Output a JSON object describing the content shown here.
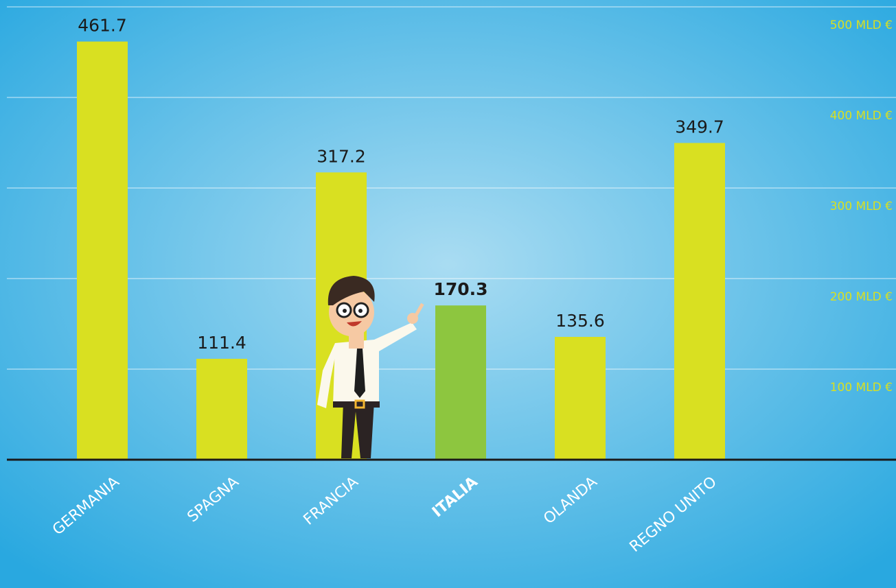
{
  "chart_data": {
    "type": "bar",
    "categories": [
      "GERMANIA",
      "SPAGNA",
      "FRANCIA",
      "ITALIA",
      "OLANDA",
      "REGNO UNITO"
    ],
    "values": [
      461.7,
      111.4,
      317.2,
      170.3,
      135.6,
      349.7
    ],
    "color": "#d9e021",
    "highlight": {
      "index": 3,
      "color": "#8dc63f"
    },
    "ylim": [
      0,
      500
    ],
    "yticks": [
      {
        "value": 100,
        "label": "100 MLD €"
      },
      {
        "value": 200,
        "label": "200 MLD €"
      },
      {
        "value": 300,
        "label": "300 MLD €"
      },
      {
        "value": 400,
        "label": "400 MLD €"
      },
      {
        "value": 500,
        "label": "500 MLD €"
      }
    ],
    "grid": true
  }
}
